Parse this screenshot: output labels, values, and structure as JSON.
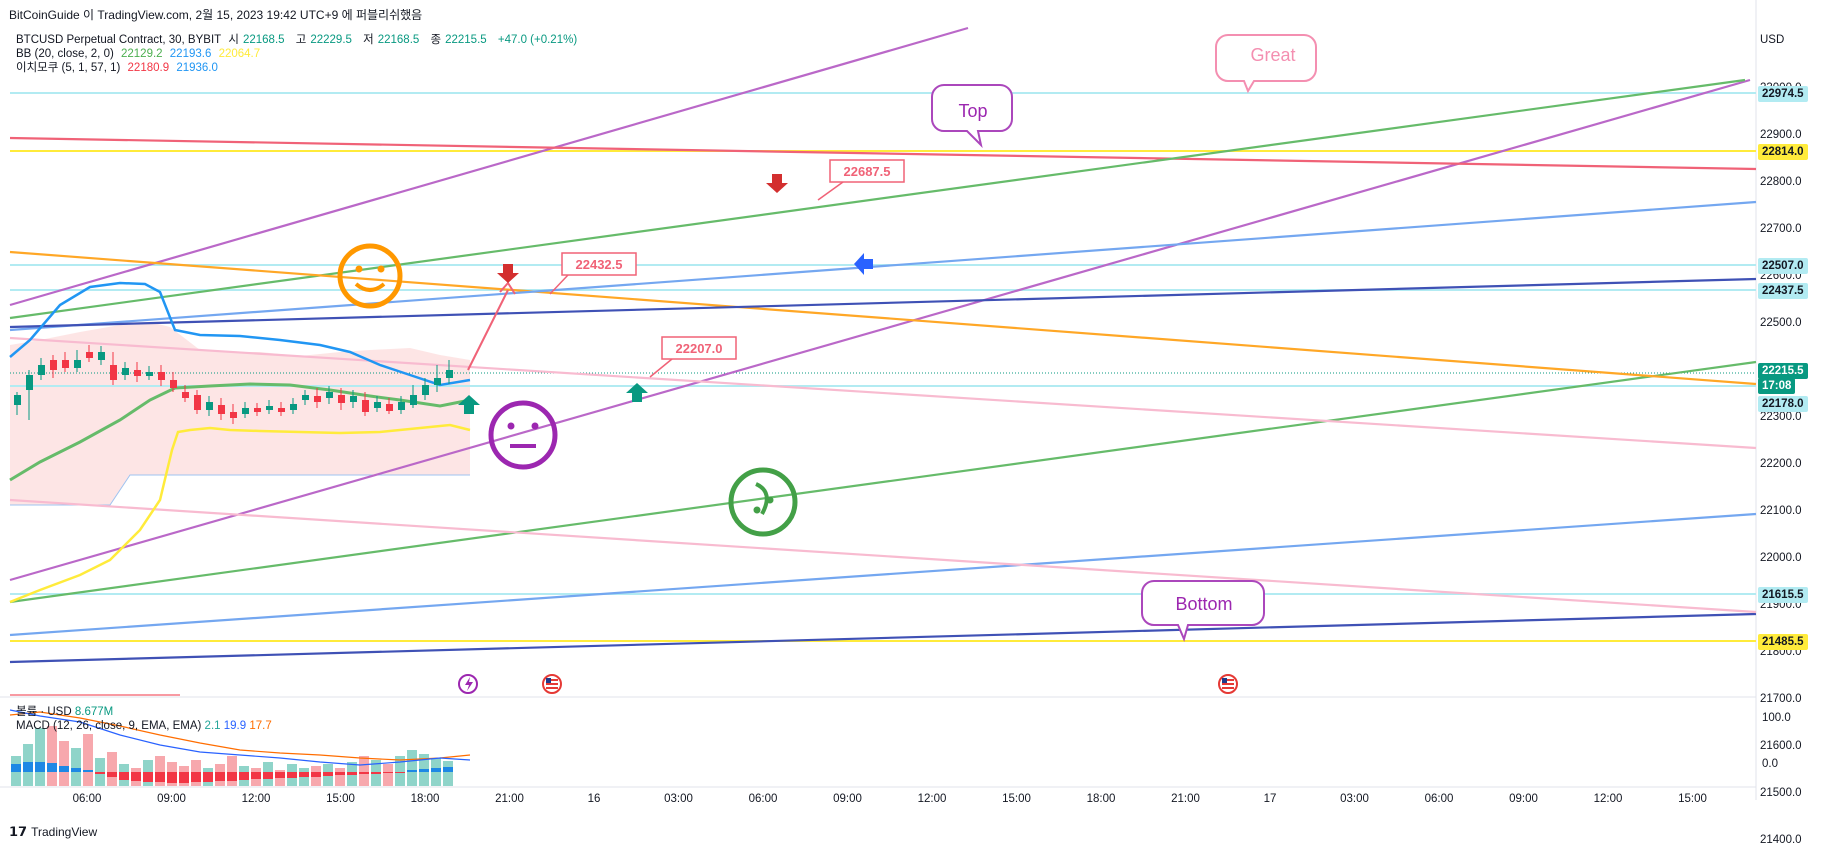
{
  "header": {
    "title": "BitCoinGuide 이 TradingView.com, 2월 15, 2023 19:42 UTC+9 에 퍼블리쉬했음"
  },
  "legend": {
    "symbol": "BTCUSD Perpetual Contract, 30, BYBIT",
    "open_label": "시",
    "open": "22168.5",
    "high_label": "고",
    "high": "22229.5",
    "low_label": "저",
    "low": "22168.5",
    "close_label": "종",
    "close": "22215.5",
    "change": "+47.0 (+0.21%)",
    "bb_name": "BB (20, close, 2, 0)",
    "bb_basis": "22129.2",
    "bb_upper": "22193.6",
    "bb_lower": "22064.7",
    "ichimoku_name": "이치모쿠 (5, 1, 57, 1)",
    "ichi_a": "22180.9",
    "ichi_b": "21936.0"
  },
  "price_axis": {
    "currency": "USD",
    "ticks": [
      "23000.0",
      "22900.0",
      "22800.0",
      "22700.0",
      "22600.0",
      "22500.0",
      "22400.0",
      "22300.0",
      "22200.0",
      "22100.0",
      "22000.0",
      "21900.0",
      "21800.0",
      "21700.0",
      "21600.0",
      "21500.0",
      "21400.0"
    ],
    "tags": [
      {
        "name": "tag-22974",
        "text": "22974.5",
        "bg": "#b2ebf2",
        "fg": "#131722"
      },
      {
        "name": "tag-22814",
        "text": "22814.0",
        "bg": "#ffeb3b",
        "fg": "#131722"
      },
      {
        "name": "tag-22507",
        "text": "22507.0",
        "bg": "#b2ebf2",
        "fg": "#131722"
      },
      {
        "name": "tag-22437",
        "text": "22437.5",
        "bg": "#b2ebf2",
        "fg": "#131722"
      },
      {
        "name": "tag-22215",
        "text": "22215.5",
        "bg": "#089981",
        "fg": "#ffffff"
      },
      {
        "name": "tag-countdown",
        "text": "17:08",
        "bg": "#089981",
        "fg": "#ffffff"
      },
      {
        "name": "tag-22178",
        "text": "22178.0",
        "bg": "#b2ebf2",
        "fg": "#131722"
      },
      {
        "name": "tag-21615",
        "text": "21615.5",
        "bg": "#b2ebf2",
        "fg": "#131722"
      },
      {
        "name": "tag-21485",
        "text": "21485.5",
        "bg": "#ffeb3b",
        "fg": "#131722"
      }
    ]
  },
  "osc_axis": {
    "ticks": [
      "100.0",
      "0.0"
    ]
  },
  "macd_legend": {
    "volume_name": "볼륨 · USD",
    "volume_value": "8.677M",
    "macd_name": "MACD (12, 26, close, 9, EMA, EMA)",
    "macd_hist": "2.1",
    "macd_line": "19.9",
    "macd_signal": "17.7"
  },
  "time_axis": {
    "labels": [
      "06:00",
      "09:00",
      "12:00",
      "15:00",
      "18:00",
      "21:00",
      "16",
      "03:00",
      "06:00",
      "09:00",
      "12:00",
      "15:00",
      "18:00",
      "21:00",
      "17",
      "03:00",
      "06:00",
      "09:00",
      "12:00",
      "15:00"
    ]
  },
  "annotations": {
    "great": "Great",
    "top": "Top",
    "bottom": "Bottom",
    "price1": "22687.5",
    "price2": "22432.5",
    "price3": "22207.0"
  },
  "footer": {
    "brand": "TradingView",
    "logo": "tv-logo-icon"
  },
  "colors": {
    "up": "#089981",
    "down": "#f23645",
    "purple": "#ba68c8",
    "green": "#66bb6a",
    "orange": "#ffa726",
    "blue": "#2196f3",
    "navy": "#3f51b5",
    "pink": "#f8bbd0",
    "yellow": "#ffeb3b",
    "cyan": "#b2ebf2",
    "red_line": "#f06277"
  }
}
